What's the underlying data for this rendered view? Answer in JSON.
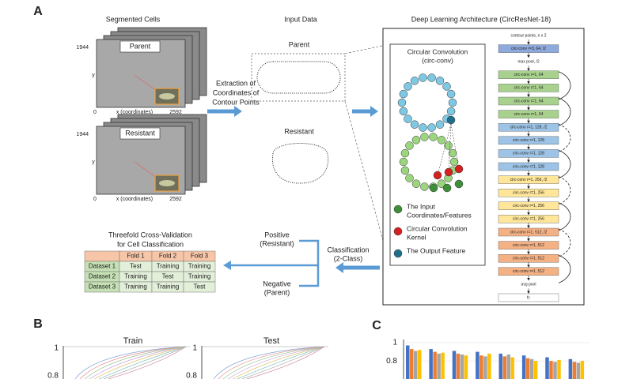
{
  "panel_a": {
    "label": "A",
    "segmented": {
      "title": "Segmented Cells",
      "parent": "Parent",
      "resistant": "Resistant",
      "y_max": "1944",
      "y_axis": "y",
      "x_min": "0",
      "x_axis": "x (coordinates)",
      "x_max": "2592"
    },
    "extraction": [
      "Extraction of",
      "Coordinates of",
      "Contour Points"
    ],
    "input": {
      "title": "Input Data",
      "parent": "Parent",
      "resistant": "Resistant"
    },
    "architecture": {
      "title": "Deep Learning Architecture (CircResNet-18)",
      "circ_title": [
        "Circular Convolution",
        "(circ-conv)"
      ],
      "legend": [
        {
          "lines": [
            "The Input",
            "Coordinates/Features"
          ],
          "color": "#3f8f3a"
        },
        {
          "lines": [
            "Circular Convolution",
            "Kernel"
          ],
          "color": "#d42020"
        },
        {
          "lines": [
            "The Output Feature"
          ],
          "color": "#1f6f8b"
        }
      ],
      "layers": [
        {
          "label": "contour points, n x 2"
        },
        {
          "label": "circ-conv r=3, 64, /2",
          "color": "#8ea9db"
        },
        {
          "label": "max pool, /2"
        },
        {
          "label": "circ-conv r=1, 64",
          "color": "#a9d18e"
        },
        {
          "label": "circ-conv r=1, 64",
          "color": "#a9d18e"
        },
        {
          "label": "circ-conv r=1, 64",
          "color": "#a9d18e"
        },
        {
          "label": "circ-conv r=1, 64",
          "color": "#a9d18e"
        },
        {
          "label": "circ-conv r=1, 128, /2",
          "color": "#9dc3e6"
        },
        {
          "label": "circ-conv r=1, 128",
          "color": "#9dc3e6"
        },
        {
          "label": "circ-conv r=1, 128",
          "color": "#9dc3e6"
        },
        {
          "label": "circ-conv r=1, 128",
          "color": "#9dc3e6"
        },
        {
          "label": "circ-conv r=1, 256, /2",
          "color": "#ffe699"
        },
        {
          "label": "circ-conv r=1, 256",
          "color": "#ffe699"
        },
        {
          "label": "circ-conv r=1, 256",
          "color": "#ffe699"
        },
        {
          "label": "circ-conv r=1, 256",
          "color": "#ffe699"
        },
        {
          "label": "circ-conv r=1, 512, /2",
          "color": "#f4b183"
        },
        {
          "label": "circ-conv r=1, 512",
          "color": "#f4b183"
        },
        {
          "label": "circ-conv r=1, 512",
          "color": "#f4b183"
        },
        {
          "label": "circ-conv r=1, 512",
          "color": "#f4b183"
        },
        {
          "label": "avg pool"
        },
        {
          "label": "fc",
          "color": "#ffffff"
        }
      ]
    },
    "validation": {
      "title": [
        "Threefold Cross-Validation",
        "for Cell Classification"
      ],
      "header": [
        "Fold 1",
        "Fold 2",
        "Fold 3"
      ],
      "rows": [
        [
          "Dataset 1",
          "Test",
          "Training",
          "Training"
        ],
        [
          "Dataset 2",
          "Training",
          "Test",
          "Training"
        ],
        [
          "Dataset 3",
          "Training",
          "Training",
          "Test"
        ]
      ]
    },
    "positive": [
      "Positive",
      "(Resistant)"
    ],
    "negative": [
      "Negative",
      "(Parent)"
    ],
    "classification": [
      "Classification",
      "(2-Class)"
    ]
  },
  "panel_b": {
    "label": "B",
    "plots": [
      {
        "title": "Train",
        "yticks": [
          "1",
          "0.8"
        ]
      },
      {
        "title": "Test",
        "yticks": [
          "1",
          "0.8"
        ]
      }
    ]
  },
  "panel_c": {
    "label": "C",
    "ylim": [
      0.6,
      1.05
    ],
    "yticks": [
      1,
      0.8
    ],
    "series": [
      {
        "color": "#4472c4",
        "values": [
          0.97,
          0.93,
          0.91,
          0.9,
          0.88,
          0.86,
          0.84,
          0.82
        ]
      },
      {
        "color": "#ed7d31",
        "values": [
          0.93,
          0.9,
          0.88,
          0.86,
          0.85,
          0.83,
          0.8,
          0.79
        ]
      },
      {
        "color": "#a5a5a5",
        "values": [
          0.91,
          0.88,
          0.87,
          0.85,
          0.87,
          0.82,
          0.79,
          0.78
        ]
      },
      {
        "color": "#ffc000",
        "values": [
          0.92,
          0.89,
          0.86,
          0.88,
          0.84,
          0.8,
          0.81,
          0.8
        ]
      }
    ]
  }
}
